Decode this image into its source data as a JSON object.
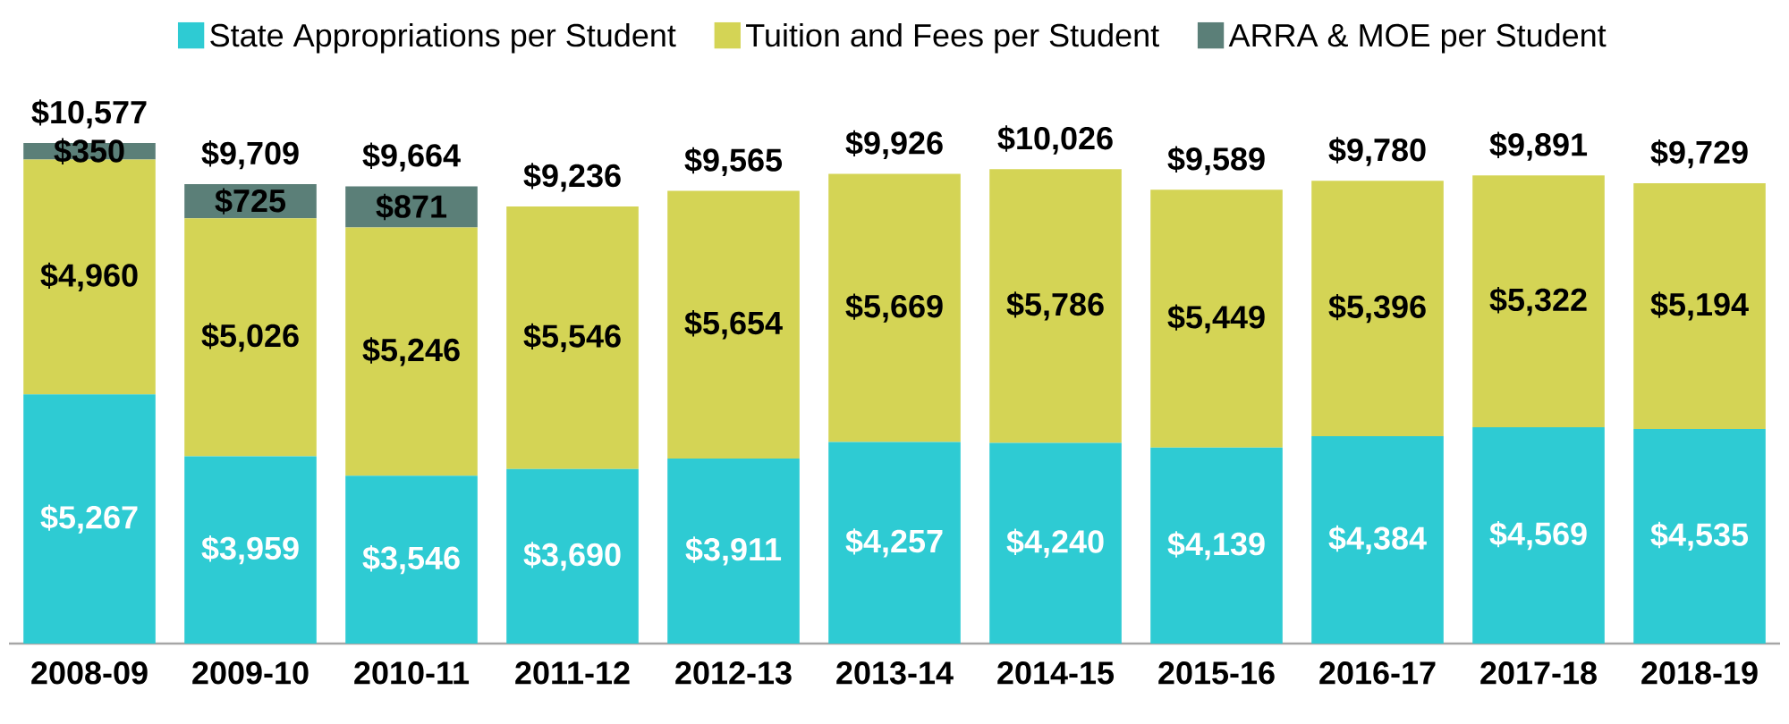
{
  "chart_data": {
    "type": "bar",
    "stacked": true,
    "legend": "top",
    "tick_labels": "x",
    "categories": [
      "2008-09",
      "2009-10",
      "2010-11",
      "2011-12",
      "2012-13",
      "2013-14",
      "2014-15",
      "2015-16",
      "2016-17",
      "2017-18",
      "2018-19"
    ],
    "series": [
      {
        "name": "State Appropriations per Student",
        "color": "#2ecbd3",
        "values": [
          5267,
          3959,
          3546,
          3690,
          3911,
          4257,
          4240,
          4139,
          4384,
          4569,
          4535
        ],
        "value_labels": [
          "$5,267",
          "$3,959",
          "$3,546",
          "$3,690",
          "$3,911",
          "$4,257",
          "$4,240",
          "$4,139",
          "$4,384",
          "$4,569",
          "$4,535"
        ]
      },
      {
        "name": "Tuition and Fees per Student",
        "color": "#d4d455",
        "values": [
          4960,
          5026,
          5246,
          5546,
          5654,
          5669,
          5786,
          5449,
          5396,
          5322,
          5194
        ],
        "value_labels": [
          "$4,960",
          "$5,026",
          "$5,246",
          "$5,546",
          "$5,654",
          "$5,669",
          "$5,786",
          "$5,449",
          "$5,396",
          "$5,322",
          "$5,194"
        ]
      },
      {
        "name": "ARRA & MOE per Student",
        "color": "#5b7f78",
        "values": [
          350,
          725,
          871,
          null,
          null,
          null,
          null,
          null,
          null,
          null,
          null
        ],
        "value_labels": [
          "$350",
          "$725",
          "$871",
          null,
          null,
          null,
          null,
          null,
          null,
          null,
          null
        ]
      }
    ],
    "totals": [
      "$10,577",
      "$9,709",
      "$9,664",
      "$9,236",
      "$9,565",
      "$9,926",
      "$10,026",
      "$9,589",
      "$9,780",
      "$9,891",
      "$9,729"
    ]
  }
}
